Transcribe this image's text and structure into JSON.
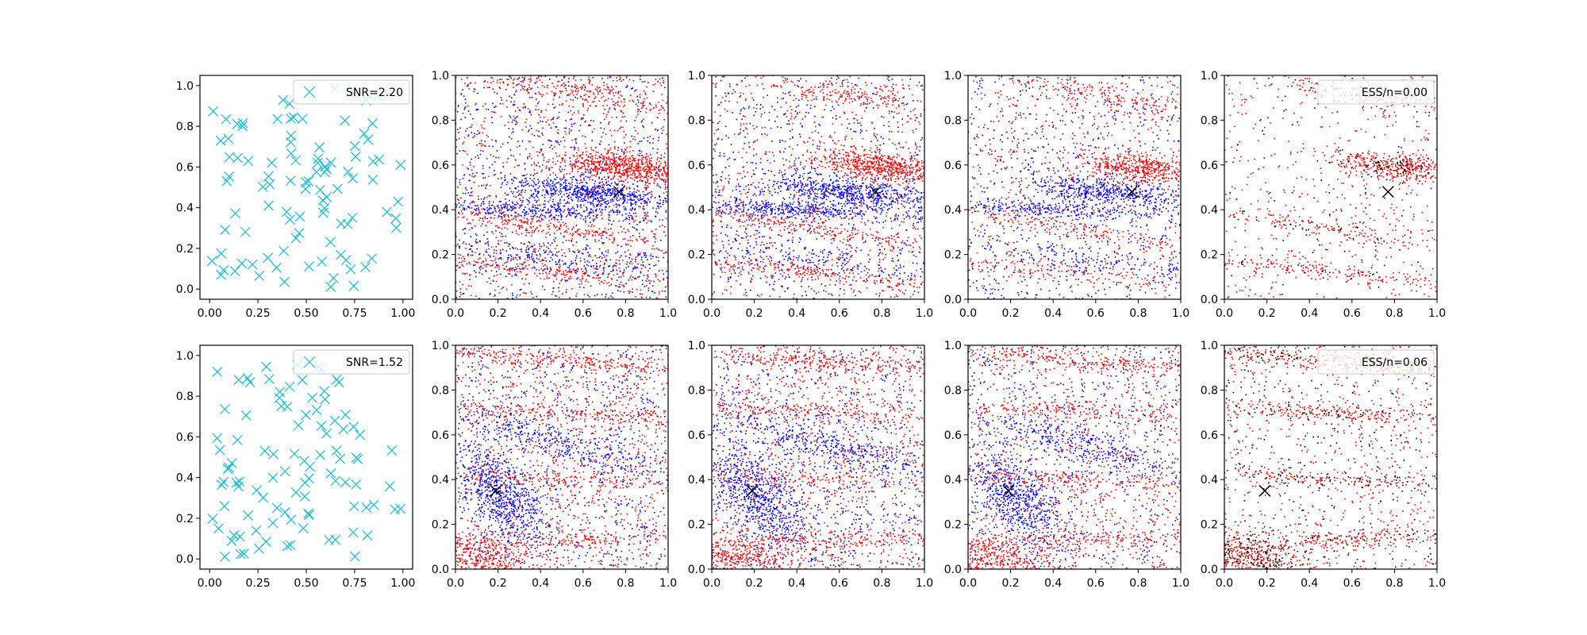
{
  "colors": {
    "cross": "#17BECF",
    "blue_points": "#0000FF",
    "red_points": "#FF0000",
    "black_points": "#000000",
    "marker": "#000000"
  },
  "chart_data": [
    {
      "panel": "r1c1",
      "type": "scatter",
      "marker": "x",
      "color": "#17BECF",
      "xlim": [
        -0.05,
        1.05
      ],
      "ylim": [
        -0.05,
        1.05
      ],
      "xticks": [
        "0.00",
        "0.25",
        "0.50",
        "0.75",
        "1.00"
      ],
      "yticks": [
        "0.0",
        "0.2",
        "0.4",
        "0.6",
        "0.8",
        "1.0"
      ],
      "legend": "SNR=2.20",
      "legend_loc": "upper right",
      "n_points": 100,
      "seed": 11
    },
    {
      "panel": "r1c2",
      "type": "scatter",
      "xlim": [
        0,
        1
      ],
      "ylim": [
        0,
        1
      ],
      "xticks": [
        "0.0",
        "0.2",
        "0.4",
        "0.6",
        "0.8",
        "1.0"
      ],
      "yticks": [
        "0.0",
        "0.2",
        "0.4",
        "0.6",
        "0.8",
        "1.0"
      ],
      "marked_point": [
        0.77,
        0.48
      ],
      "series": [
        {
          "color": "#0000FF",
          "n": 2200
        },
        {
          "color": "#FF0000",
          "n": 2200
        }
      ],
      "seed": 21
    },
    {
      "panel": "r1c3",
      "type": "scatter",
      "xlim": [
        0,
        1
      ],
      "ylim": [
        0,
        1
      ],
      "xticks": [
        "0.0",
        "0.2",
        "0.4",
        "0.6",
        "0.8",
        "1.0"
      ],
      "yticks": [
        "0.0",
        "0.2",
        "0.4",
        "0.6",
        "0.8",
        "1.0"
      ],
      "marked_point": [
        0.77,
        0.48
      ],
      "series": [
        {
          "color": "#0000FF",
          "n": 2000
        },
        {
          "color": "#FF0000",
          "n": 2000
        }
      ],
      "seed": 31
    },
    {
      "panel": "r1c4",
      "type": "scatter",
      "xlim": [
        0,
        1
      ],
      "ylim": [
        0,
        1
      ],
      "xticks": [
        "0.0",
        "0.2",
        "0.4",
        "0.6",
        "0.8",
        "1.0"
      ],
      "yticks": [
        "0.0",
        "0.2",
        "0.4",
        "0.6",
        "0.8",
        "1.0"
      ],
      "marked_point": [
        0.77,
        0.48
      ],
      "series": [
        {
          "color": "#0000FF",
          "n": 1700
        },
        {
          "color": "#FF0000",
          "n": 1500
        }
      ],
      "seed": 41
    },
    {
      "panel": "r1c5",
      "type": "scatter",
      "xlim": [
        0,
        1
      ],
      "ylim": [
        0,
        1
      ],
      "xticks": [
        "0.0",
        "0.2",
        "0.4",
        "0.6",
        "0.8",
        "1.0"
      ],
      "yticks": [
        "0.0",
        "0.2",
        "0.4",
        "0.6",
        "0.8",
        "1.0"
      ],
      "marked_point": [
        0.77,
        0.48
      ],
      "legend": "ESS/n=0.00",
      "legend_loc": "upper right",
      "series": [
        {
          "color": "#FF0000",
          "n": 1300
        },
        {
          "color": "#000000",
          "n": 300
        }
      ],
      "seed": 51
    },
    {
      "panel": "r2c1",
      "type": "scatter",
      "marker": "x",
      "color": "#17BECF",
      "xlim": [
        -0.05,
        1.05
      ],
      "ylim": [
        -0.05,
        1.05
      ],
      "xticks": [
        "0.00",
        "0.25",
        "0.50",
        "0.75",
        "1.00"
      ],
      "yticks": [
        "0.0",
        "0.2",
        "0.4",
        "0.6",
        "0.8",
        "1.0"
      ],
      "legend": "SNR=1.52",
      "legend_loc": "upper right",
      "n_points": 100,
      "seed": 12
    },
    {
      "panel": "r2c2",
      "type": "scatter",
      "xlim": [
        0,
        1
      ],
      "ylim": [
        0,
        1
      ],
      "xticks": [
        "0.0",
        "0.2",
        "0.4",
        "0.6",
        "0.8",
        "1.0"
      ],
      "yticks": [
        "0.0",
        "0.2",
        "0.4",
        "0.6",
        "0.8",
        "1.0"
      ],
      "marked_point": [
        0.19,
        0.35
      ],
      "series": [
        {
          "color": "#0000FF",
          "n": 2000
        },
        {
          "color": "#FF0000",
          "n": 2200
        }
      ],
      "seed": 61
    },
    {
      "panel": "r2c3",
      "type": "scatter",
      "xlim": [
        0,
        1
      ],
      "ylim": [
        0,
        1
      ],
      "xticks": [
        "0.0",
        "0.2",
        "0.4",
        "0.6",
        "0.8",
        "1.0"
      ],
      "yticks": [
        "0.0",
        "0.2",
        "0.4",
        "0.6",
        "0.8",
        "1.0"
      ],
      "marked_point": [
        0.19,
        0.35
      ],
      "series": [
        {
          "color": "#0000FF",
          "n": 2000
        },
        {
          "color": "#FF0000",
          "n": 2200
        }
      ],
      "seed": 71
    },
    {
      "panel": "r2c4",
      "type": "scatter",
      "xlim": [
        0,
        1
      ],
      "ylim": [
        0,
        1
      ],
      "xticks": [
        "0.0",
        "0.2",
        "0.4",
        "0.6",
        "0.8",
        "1.0"
      ],
      "yticks": [
        "0.0",
        "0.2",
        "0.4",
        "0.6",
        "0.8",
        "1.0"
      ],
      "marked_point": [
        0.19,
        0.35
      ],
      "series": [
        {
          "color": "#0000FF",
          "n": 1800
        },
        {
          "color": "#FF0000",
          "n": 2000
        }
      ],
      "seed": 81
    },
    {
      "panel": "r2c5",
      "type": "scatter",
      "xlim": [
        0,
        1
      ],
      "ylim": [
        0,
        1
      ],
      "xticks": [
        "0.0",
        "0.2",
        "0.4",
        "0.6",
        "0.8",
        "1.0"
      ],
      "yticks": [
        "0.0",
        "0.2",
        "0.4",
        "0.6",
        "0.8",
        "1.0"
      ],
      "marked_point": [
        0.19,
        0.35
      ],
      "legend": "ESS/n=0.06",
      "legend_loc": "upper right",
      "series": [
        {
          "color": "#FF0000",
          "n": 1800
        },
        {
          "color": "#000000",
          "n": 800
        }
      ],
      "seed": 91
    }
  ]
}
